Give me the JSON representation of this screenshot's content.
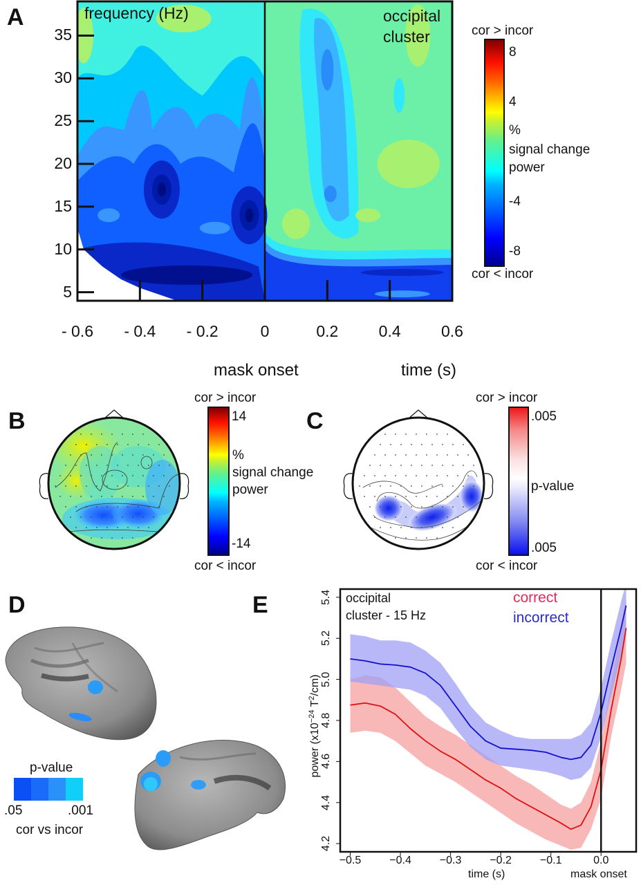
{
  "panels": {
    "A": {
      "letter": "A"
    },
    "B": {
      "letter": "B"
    },
    "C": {
      "letter": "C"
    },
    "D": {
      "letter": "D"
    },
    "E": {
      "letter": "E"
    }
  },
  "chart_data": [
    {
      "id": "A",
      "type": "heatmap",
      "title": "occipital cluster",
      "title_lines": [
        "occipital",
        "cluster"
      ],
      "ylabel": "frequency (Hz)",
      "xlabel": "time (s)",
      "x_annotation": "mask onset",
      "xlim": [
        -0.6,
        0.6
      ],
      "ylim": [
        4,
        39
      ],
      "x_ticks": [
        -0.6,
        -0.4,
        -0.2,
        0,
        0.2,
        0.4,
        0.6
      ],
      "x_tick_labels": [
        "- 0.6",
        "- 0.4",
        "- 0.2",
        "0",
        "0.2",
        "0.4",
        "0.6"
      ],
      "y_ticks": [
        5,
        10,
        15,
        20,
        25,
        30,
        35
      ],
      "y_tick_labels": [
        "5",
        "10",
        "15",
        "20",
        "25",
        "30",
        "35"
      ],
      "vline_at": 0,
      "colorbar": {
        "top_label": "cor > incor",
        "bottom_label": "cor < incor",
        "ticks": [
          8,
          4,
          -4,
          -8
        ],
        "tick_labels": [
          "8",
          "4",
          "-4",
          "-8"
        ],
        "range": [
          -9,
          9
        ],
        "units_lines": [
          "%",
          "signal change",
          "power"
        ],
        "colormap": "jet"
      },
      "summary": "Before mask onset (t<0) power is reduced (blue, ~-4 to -8 %) especially 10-20 Hz with minima near (-0.33 s, 17 Hz) and (-0.05 s, 14 Hz); after onset values near 0 to +2 % (green) except strong reduction below ~9 Hz.",
      "blobs": [
        {
          "t": -0.33,
          "f": 17,
          "v": -8
        },
        {
          "t": -0.05,
          "f": 14,
          "v": -8
        },
        {
          "t": -0.25,
          "f": 7,
          "v": -8
        },
        {
          "t": -0.15,
          "f": 8,
          "v": -7
        },
        {
          "t": 0.2,
          "f": 31,
          "v": -4
        },
        {
          "t": 0.22,
          "f": 16,
          "v": -4
        },
        {
          "t": 0.1,
          "f": 13,
          "v": 2
        },
        {
          "t": 0.55,
          "f": 7,
          "v": -8
        }
      ]
    },
    {
      "id": "B",
      "type": "heatmap",
      "subtype": "scalp topography",
      "colorbar": {
        "top_label": "cor > incor",
        "bottom_label": "cor < incor",
        "ticks": [
          14,
          -14
        ],
        "tick_labels": [
          "14",
          "-14"
        ],
        "range": [
          -14,
          14
        ],
        "units_lines": [
          "%",
          "signal change",
          "power"
        ],
        "colormap": "jet"
      },
      "summary": "Mostly green/cyan (~0 %), blue reduction over posterior band and right temporal area, red peak at occipital edge."
    },
    {
      "id": "C",
      "type": "heatmap",
      "subtype": "scalp topography p-values",
      "colorbar": {
        "top_label": "cor > incor",
        "bottom_label": "cor < incor",
        "ticks": [
          ".005",
          ".005"
        ],
        "tick_labels": [
          ".005",
          ".005"
        ],
        "mid_label": "p-value",
        "colormap": "red-white-blue"
      },
      "summary": "Three significant blue clusters over posterior scalp: left-posterior, mid-occipital, right-posterior."
    },
    {
      "id": "D",
      "type": "heatmap",
      "subtype": "cortical surface",
      "legend": {
        "title": "p-value",
        "min_label": ".05",
        "max_label": ".001",
        "caption": "cor vs incor",
        "colors": [
          "#0a50f5",
          "#1a6cf8",
          "#2a90fa",
          "#10d0fa"
        ]
      }
    },
    {
      "id": "E",
      "type": "line",
      "annotation_lines": [
        "occipital",
        "cluster - 15 Hz"
      ],
      "xlabel": "time (s)",
      "x_annotation": "mask onset",
      "ylabel": "power (x10⁻²⁴ T²/cm)",
      "ylabel_parts": {
        "base": "power (x10",
        "exp1": "−24",
        "mid": " T",
        "exp2": "2",
        "end": "/cm)"
      },
      "xlim": [
        -0.52,
        0.07
      ],
      "ylim": [
        4.16,
        5.44
      ],
      "x_ticks": [
        -0.5,
        -0.4,
        -0.3,
        -0.2,
        -0.1,
        0.0
      ],
      "x_tick_labels": [
        "−0.5",
        "−0.4",
        "−0.3",
        "−0.2",
        "−0.1",
        "0.0"
      ],
      "y_ticks": [
        4.2,
        4.4,
        4.6,
        4.8,
        5.0,
        5.2,
        5.4
      ],
      "y_tick_labels": [
        "4.2",
        "4.4",
        "4.6",
        "4.8",
        "5.0",
        "5.2",
        "5.4"
      ],
      "vline_at": 0.0,
      "legend": "top-right",
      "series": [
        {
          "name": "correct",
          "color": "#dd1111",
          "band_color": "#f7a0a0",
          "legend_color": "#e8295a",
          "x": [
            -0.5,
            -0.47,
            -0.44,
            -0.41,
            -0.38,
            -0.35,
            -0.32,
            -0.29,
            -0.26,
            -0.23,
            -0.2,
            -0.17,
            -0.14,
            -0.11,
            -0.08,
            -0.06,
            -0.04,
            -0.02,
            0.0,
            0.02,
            0.04,
            0.05
          ],
          "y": [
            4.875,
            4.885,
            4.87,
            4.83,
            4.76,
            4.7,
            4.65,
            4.61,
            4.56,
            4.51,
            4.47,
            4.42,
            4.38,
            4.34,
            4.3,
            4.27,
            4.29,
            4.38,
            4.56,
            4.85,
            5.1,
            5.25
          ],
          "upper": [
            5.0,
            5.02,
            5.01,
            4.96,
            4.89,
            4.82,
            4.77,
            4.73,
            4.68,
            4.63,
            4.58,
            4.53,
            4.49,
            4.44,
            4.39,
            4.37,
            4.4,
            4.5,
            4.7,
            4.98,
            5.25,
            5.4
          ],
          "lower": [
            4.74,
            4.75,
            4.74,
            4.7,
            4.64,
            4.58,
            4.54,
            4.5,
            4.45,
            4.4,
            4.35,
            4.3,
            4.26,
            4.22,
            4.19,
            4.17,
            4.18,
            4.27,
            4.42,
            4.72,
            4.95,
            5.08
          ]
        },
        {
          "name": "incorrect",
          "color": "#1010cc",
          "band_color": "#a0a0f5",
          "legend_color": "#2a2ad0",
          "x": [
            -0.5,
            -0.47,
            -0.44,
            -0.41,
            -0.38,
            -0.35,
            -0.32,
            -0.29,
            -0.26,
            -0.23,
            -0.2,
            -0.17,
            -0.14,
            -0.11,
            -0.08,
            -0.06,
            -0.04,
            -0.02,
            0.0,
            0.02,
            0.04,
            0.05
          ],
          "y": [
            5.1,
            5.09,
            5.075,
            5.07,
            5.06,
            5.03,
            4.97,
            4.87,
            4.77,
            4.7,
            4.665,
            4.66,
            4.655,
            4.645,
            4.62,
            4.61,
            4.62,
            4.68,
            4.84,
            5.05,
            5.25,
            5.36
          ],
          "upper": [
            5.22,
            5.21,
            5.19,
            5.19,
            5.18,
            5.14,
            5.08,
            4.98,
            4.87,
            4.79,
            4.75,
            4.72,
            4.71,
            4.71,
            4.71,
            4.71,
            4.73,
            4.79,
            4.96,
            5.18,
            5.38,
            5.47
          ],
          "lower": [
            4.99,
            4.98,
            4.97,
            4.96,
            4.95,
            4.92,
            4.86,
            4.76,
            4.67,
            4.61,
            4.58,
            4.57,
            4.56,
            4.55,
            4.53,
            4.51,
            4.52,
            4.57,
            4.72,
            4.92,
            5.12,
            5.25
          ]
        }
      ]
    }
  ]
}
